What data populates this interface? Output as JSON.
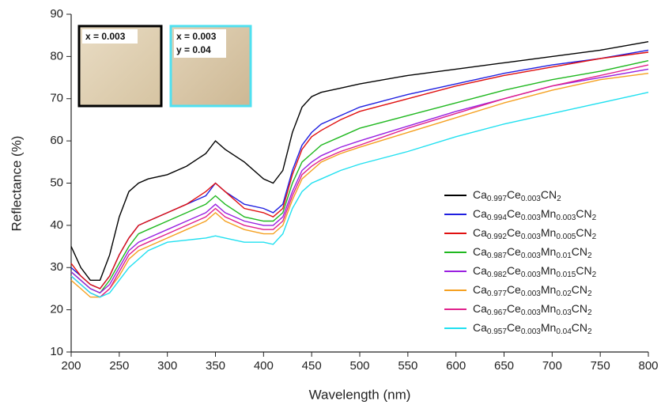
{
  "chart_data": {
    "type": "line",
    "xlabel": "Wavelength (nm)",
    "ylabel": "Reflectance (%)",
    "x": [
      200,
      210,
      220,
      230,
      240,
      250,
      260,
      270,
      280,
      300,
      320,
      340,
      350,
      360,
      380,
      400,
      410,
      420,
      430,
      440,
      450,
      460,
      480,
      500,
      550,
      600,
      650,
      700,
      750,
      800
    ],
    "series": [
      {
        "name": "Ca0.997Ce0.003CN2",
        "color": "#000000",
        "values": [
          35,
          30,
          27,
          27,
          33,
          42,
          48,
          50,
          51,
          52,
          54,
          57,
          60,
          58,
          55,
          51,
          50,
          53,
          62,
          68,
          70.5,
          71.5,
          72.5,
          73.5,
          75.5,
          77,
          78.5,
          80,
          81.5,
          83.5
        ]
      },
      {
        "name": "Ca0.994Ce0.003Mn0.003CN2",
        "color": "#1f1fe0",
        "values": [
          30,
          28,
          26,
          25,
          28,
          33,
          37,
          40,
          41,
          43,
          45,
          47,
          50,
          48,
          45,
          44,
          43,
          45,
          53,
          59,
          62,
          64,
          66,
          68,
          71,
          73.5,
          76,
          78,
          79.5,
          81.5
        ]
      },
      {
        "name": "Ca0.992Ce0.003Mn0.005CN2",
        "color": "#e01010",
        "values": [
          31,
          28,
          26,
          25,
          28,
          33,
          37,
          40,
          41,
          43,
          45,
          48,
          50,
          48,
          44,
          43,
          42,
          44,
          52,
          58,
          61,
          62.5,
          65,
          67,
          70,
          73,
          75.5,
          77.5,
          79.5,
          81
        ]
      },
      {
        "name": "Ca0.987Ce0.003Mn0.01CN2",
        "color": "#20b820",
        "values": [
          29,
          27,
          25,
          24,
          27,
          31,
          35,
          38,
          39,
          41,
          43,
          45,
          47,
          45,
          42,
          41,
          41,
          43,
          50,
          55,
          57,
          59,
          61,
          63,
          66,
          69,
          72,
          74.5,
          76.5,
          79
        ]
      },
      {
        "name": "Ca0.982Ce0.003Mn0.015CN2",
        "color": "#9a20e0",
        "values": [
          29,
          27,
          25,
          24,
          26,
          30,
          34,
          36,
          37,
          39,
          41,
          43,
          45,
          43,
          41,
          40,
          40,
          42,
          48,
          53,
          55,
          56.5,
          58.5,
          60,
          63.5,
          67,
          70,
          73,
          75,
          77
        ]
      },
      {
        "name": "Ca0.977Ce0.003Mn0.02CN2",
        "color": "#f5a020",
        "values": [
          27,
          25,
          23,
          23,
          25,
          28,
          32,
          34,
          35,
          37,
          39,
          41,
          43,
          41,
          39,
          38,
          38,
          40,
          46,
          51,
          53,
          55,
          57,
          58.5,
          62,
          65.5,
          69,
          72,
          74.5,
          76
        ]
      },
      {
        "name": "Ca0.967Ce0.003Mn0.03CN2",
        "color": "#e0208c",
        "values": [
          28,
          26,
          24,
          23,
          25,
          29,
          33,
          35,
          36,
          38,
          40,
          42,
          44,
          42,
          40,
          39,
          39,
          41,
          47,
          52,
          54,
          55.5,
          57.5,
          59,
          63,
          66.5,
          70,
          73,
          75.5,
          78
        ]
      },
      {
        "name": "Ca0.957Ce0.003Mn0.04CN2",
        "color": "#20e0f0",
        "values": [
          28,
          26,
          24,
          23,
          24,
          27,
          30,
          32,
          34,
          36,
          36.5,
          37,
          37.5,
          37,
          36,
          36,
          35.5,
          38,
          44,
          48,
          50,
          51,
          53,
          54.5,
          57.5,
          61,
          64,
          66.5,
          69,
          71.5
        ]
      }
    ],
    "xlim": [
      200,
      800
    ],
    "xticks": [
      200,
      250,
      300,
      350,
      400,
      450,
      500,
      550,
      600,
      650,
      700,
      750,
      800
    ],
    "ylim": [
      10,
      90
    ],
    "yticks": [
      10,
      20,
      30,
      40,
      50,
      60,
      70,
      80,
      90
    ],
    "legend": "lower right",
    "insets": [
      {
        "lines": [
          "x = 0.003"
        ]
      },
      {
        "lines": [
          "x = 0.003",
          "y = 0.04"
        ]
      }
    ]
  }
}
